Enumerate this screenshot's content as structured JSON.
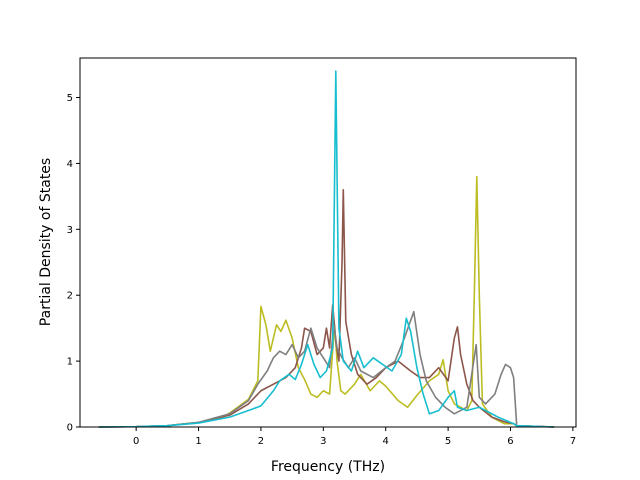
{
  "chart_data": {
    "type": "line",
    "xlabel": "Frequency (THz)",
    "ylabel": "Partial Density of States",
    "xlim": [
      -0.9,
      7.05
    ],
    "ylim": [
      0,
      5.6
    ],
    "xticks": [
      "0",
      "1",
      "2",
      "3",
      "4",
      "5",
      "6",
      "7"
    ],
    "yticks": [
      "0",
      "1",
      "2",
      "3",
      "4",
      "5"
    ],
    "grid": false,
    "series": [
      {
        "color": "#bcbd22",
        "points": [
          [
            -0.6,
            0
          ],
          [
            0,
            0.005
          ],
          [
            0.5,
            0.02
          ],
          [
            1,
            0.07
          ],
          [
            1.4,
            0.15
          ],
          [
            1.6,
            0.28
          ],
          [
            1.8,
            0.42
          ],
          [
            1.95,
            0.7
          ],
          [
            2.0,
            1.83
          ],
          [
            2.08,
            1.55
          ],
          [
            2.15,
            1.15
          ],
          [
            2.25,
            1.55
          ],
          [
            2.32,
            1.45
          ],
          [
            2.4,
            1.62
          ],
          [
            2.5,
            1.35
          ],
          [
            2.6,
            0.9
          ],
          [
            2.7,
            0.72
          ],
          [
            2.8,
            0.5
          ],
          [
            2.9,
            0.45
          ],
          [
            3.0,
            0.55
          ],
          [
            3.1,
            0.5
          ],
          [
            3.18,
            1.55
          ],
          [
            3.22,
            1.0
          ],
          [
            3.28,
            0.55
          ],
          [
            3.35,
            0.5
          ],
          [
            3.5,
            0.65
          ],
          [
            3.6,
            0.8
          ],
          [
            3.75,
            0.55
          ],
          [
            3.9,
            0.7
          ],
          [
            4.0,
            0.62
          ],
          [
            4.2,
            0.4
          ],
          [
            4.35,
            0.3
          ],
          [
            4.5,
            0.48
          ],
          [
            4.7,
            0.7
          ],
          [
            4.85,
            0.8
          ],
          [
            4.92,
            1.02
          ],
          [
            5.0,
            0.55
          ],
          [
            5.1,
            0.35
          ],
          [
            5.2,
            0.3
          ],
          [
            5.3,
            0.25
          ],
          [
            5.38,
            0.4
          ],
          [
            5.42,
            2.0
          ],
          [
            5.46,
            3.8
          ],
          [
            5.5,
            2.0
          ],
          [
            5.55,
            0.35
          ],
          [
            5.7,
            0.15
          ],
          [
            5.9,
            0.05
          ],
          [
            6.05,
            0.05
          ],
          [
            6.1,
            0.02
          ],
          [
            6.7,
            0
          ]
        ]
      },
      {
        "color": "#8c564b",
        "points": [
          [
            -0.6,
            0
          ],
          [
            0,
            0.005
          ],
          [
            0.5,
            0.02
          ],
          [
            1,
            0.07
          ],
          [
            1.5,
            0.18
          ],
          [
            1.8,
            0.35
          ],
          [
            2.0,
            0.55
          ],
          [
            2.2,
            0.65
          ],
          [
            2.4,
            0.75
          ],
          [
            2.55,
            0.9
          ],
          [
            2.65,
            1.2
          ],
          [
            2.7,
            1.5
          ],
          [
            2.8,
            1.45
          ],
          [
            2.9,
            1.1
          ],
          [
            3.0,
            1.2
          ],
          [
            3.05,
            1.5
          ],
          [
            3.1,
            1.2
          ],
          [
            3.15,
            1.85
          ],
          [
            3.2,
            1.3
          ],
          [
            3.25,
            1.0
          ],
          [
            3.3,
            2.5
          ],
          [
            3.32,
            3.6
          ],
          [
            3.36,
            1.6
          ],
          [
            3.45,
            1.1
          ],
          [
            3.55,
            0.8
          ],
          [
            3.7,
            0.65
          ],
          [
            3.85,
            0.75
          ],
          [
            4.0,
            0.9
          ],
          [
            4.2,
            1.0
          ],
          [
            4.4,
            0.85
          ],
          [
            4.55,
            0.75
          ],
          [
            4.7,
            0.75
          ],
          [
            4.85,
            0.9
          ],
          [
            5.0,
            0.7
          ],
          [
            5.1,
            1.35
          ],
          [
            5.15,
            1.52
          ],
          [
            5.2,
            1.1
          ],
          [
            5.3,
            0.65
          ],
          [
            5.4,
            0.4
          ],
          [
            5.5,
            0.3
          ],
          [
            5.7,
            0.15
          ],
          [
            5.9,
            0.08
          ],
          [
            6.05,
            0.05
          ],
          [
            6.1,
            0.02
          ],
          [
            6.7,
            0
          ]
        ]
      },
      {
        "color": "#7f7f7f",
        "points": [
          [
            -0.6,
            0
          ],
          [
            0,
            0.005
          ],
          [
            0.5,
            0.02
          ],
          [
            1,
            0.07
          ],
          [
            1.5,
            0.2
          ],
          [
            1.8,
            0.4
          ],
          [
            1.95,
            0.65
          ],
          [
            2.1,
            0.85
          ],
          [
            2.2,
            1.05
          ],
          [
            2.3,
            1.15
          ],
          [
            2.4,
            1.1
          ],
          [
            2.5,
            1.25
          ],
          [
            2.6,
            1.05
          ],
          [
            2.7,
            1.15
          ],
          [
            2.8,
            1.5
          ],
          [
            2.9,
            1.2
          ],
          [
            3.0,
            1.05
          ],
          [
            3.1,
            0.9
          ],
          [
            3.17,
            1.55
          ],
          [
            3.22,
            1.2
          ],
          [
            3.3,
            1.05
          ],
          [
            3.4,
            0.9
          ],
          [
            3.5,
            1.05
          ],
          [
            3.6,
            0.85
          ],
          [
            3.8,
            0.75
          ],
          [
            4.0,
            0.9
          ],
          [
            4.15,
            1.0
          ],
          [
            4.3,
            1.35
          ],
          [
            4.45,
            1.75
          ],
          [
            4.55,
            1.1
          ],
          [
            4.65,
            0.7
          ],
          [
            4.8,
            0.45
          ],
          [
            4.95,
            0.3
          ],
          [
            5.1,
            0.2
          ],
          [
            5.3,
            0.3
          ],
          [
            5.45,
            1.25
          ],
          [
            5.5,
            0.45
          ],
          [
            5.6,
            0.35
          ],
          [
            5.75,
            0.5
          ],
          [
            5.85,
            0.8
          ],
          [
            5.92,
            0.95
          ],
          [
            6.0,
            0.9
          ],
          [
            6.05,
            0.75
          ],
          [
            6.1,
            0.02
          ],
          [
            6.7,
            0
          ]
        ]
      },
      {
        "color": "#17becf",
        "points": [
          [
            -0.6,
            0
          ],
          [
            0,
            0.005
          ],
          [
            0.5,
            0.02
          ],
          [
            1,
            0.06
          ],
          [
            1.5,
            0.15
          ],
          [
            1.8,
            0.25
          ],
          [
            2.0,
            0.32
          ],
          [
            2.2,
            0.55
          ],
          [
            2.3,
            0.7
          ],
          [
            2.45,
            0.8
          ],
          [
            2.55,
            0.72
          ],
          [
            2.65,
            0.95
          ],
          [
            2.75,
            1.25
          ],
          [
            2.85,
            0.95
          ],
          [
            2.95,
            0.75
          ],
          [
            3.05,
            0.85
          ],
          [
            3.15,
            1.2
          ],
          [
            3.2,
            5.4
          ],
          [
            3.25,
            1.5
          ],
          [
            3.32,
            1.0
          ],
          [
            3.45,
            0.85
          ],
          [
            3.55,
            1.15
          ],
          [
            3.65,
            0.9
          ],
          [
            3.8,
            1.05
          ],
          [
            3.95,
            0.95
          ],
          [
            4.1,
            0.85
          ],
          [
            4.25,
            1.1
          ],
          [
            4.33,
            1.65
          ],
          [
            4.4,
            1.45
          ],
          [
            4.5,
            0.9
          ],
          [
            4.6,
            0.5
          ],
          [
            4.7,
            0.2
          ],
          [
            4.85,
            0.25
          ],
          [
            5.0,
            0.45
          ],
          [
            5.1,
            0.55
          ],
          [
            5.15,
            0.3
          ],
          [
            5.3,
            0.25
          ],
          [
            5.5,
            0.3
          ],
          [
            5.8,
            0.15
          ],
          [
            6.05,
            0.05
          ],
          [
            6.1,
            0.02
          ],
          [
            6.7,
            0
          ]
        ]
      }
    ]
  }
}
